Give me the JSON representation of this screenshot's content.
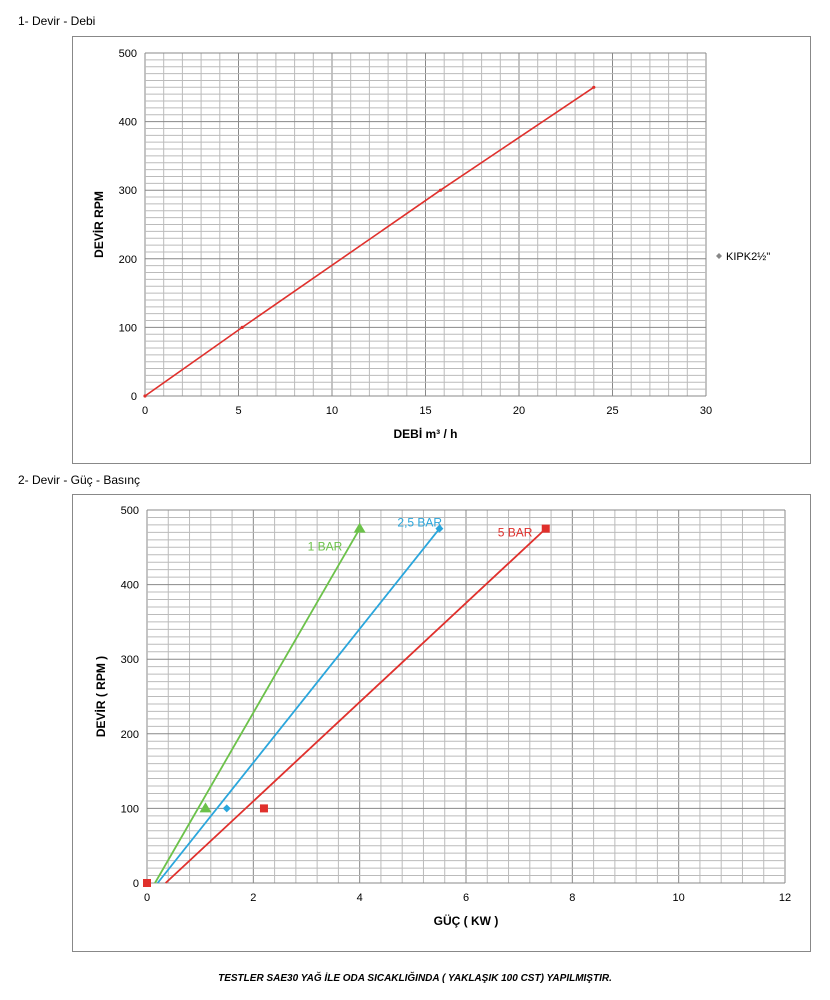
{
  "chart_data": [
    {
      "type": "line",
      "section_title": "1- Devir - Debi",
      "xlabel": "DEBİ m³ / h",
      "ylabel": "DEVİR RPM",
      "xlim": [
        0,
        30
      ],
      "ylim": [
        0,
        500
      ],
      "xticks": [
        0,
        5,
        10,
        15,
        20,
        25,
        30
      ],
      "yticks": [
        0,
        100,
        200,
        300,
        400,
        500
      ],
      "grid": true,
      "legend_position": "right",
      "series": [
        {
          "name": "KIPK2½\"",
          "color": "#e0302c",
          "x": [
            0,
            5.2,
            15.8,
            24
          ],
          "y": [
            0,
            100,
            300,
            450
          ]
        }
      ]
    },
    {
      "type": "line",
      "section_title": "2- Devir - Güç - Basınç",
      "xlabel": "GÜÇ ( KW )",
      "ylabel": "DEVİR ( RPM )",
      "xlim": [
        0,
        12
      ],
      "ylim": [
        0,
        500
      ],
      "xticks": [
        0,
        2,
        4,
        6,
        8,
        10,
        12
      ],
      "yticks": [
        0,
        100,
        200,
        300,
        400,
        500
      ],
      "grid": true,
      "series": [
        {
          "name": "1 BAR",
          "color": "#6cc24a",
          "marker": "triangle",
          "points_x": [
            1.1,
            4
          ],
          "points_y": [
            100,
            475
          ],
          "line_x": [
            0.15,
            4
          ],
          "line_y": [
            0,
            475
          ]
        },
        {
          "name": "2,5 BAR",
          "color": "#2aa6dc",
          "marker": "diamond",
          "points_x": [
            1.5,
            5.5
          ],
          "points_y": [
            100,
            475
          ],
          "line_x": [
            0.2,
            5.5
          ],
          "line_y": [
            0,
            475
          ]
        },
        {
          "name": "5 BAR",
          "color": "#e0302c",
          "marker": "square",
          "points_x": [
            0,
            2.2,
            7.5
          ],
          "points_y": [
            0,
            100,
            475
          ],
          "line_x": [
            0.35,
            7.5
          ],
          "line_y": [
            0,
            475
          ]
        }
      ]
    }
  ],
  "footer": "TESTLER SAE30 YAĞ İLE ODA SICAKLIĞINDA ( YAKLAŞIK 100 CST) YAPILMIŞTIR."
}
